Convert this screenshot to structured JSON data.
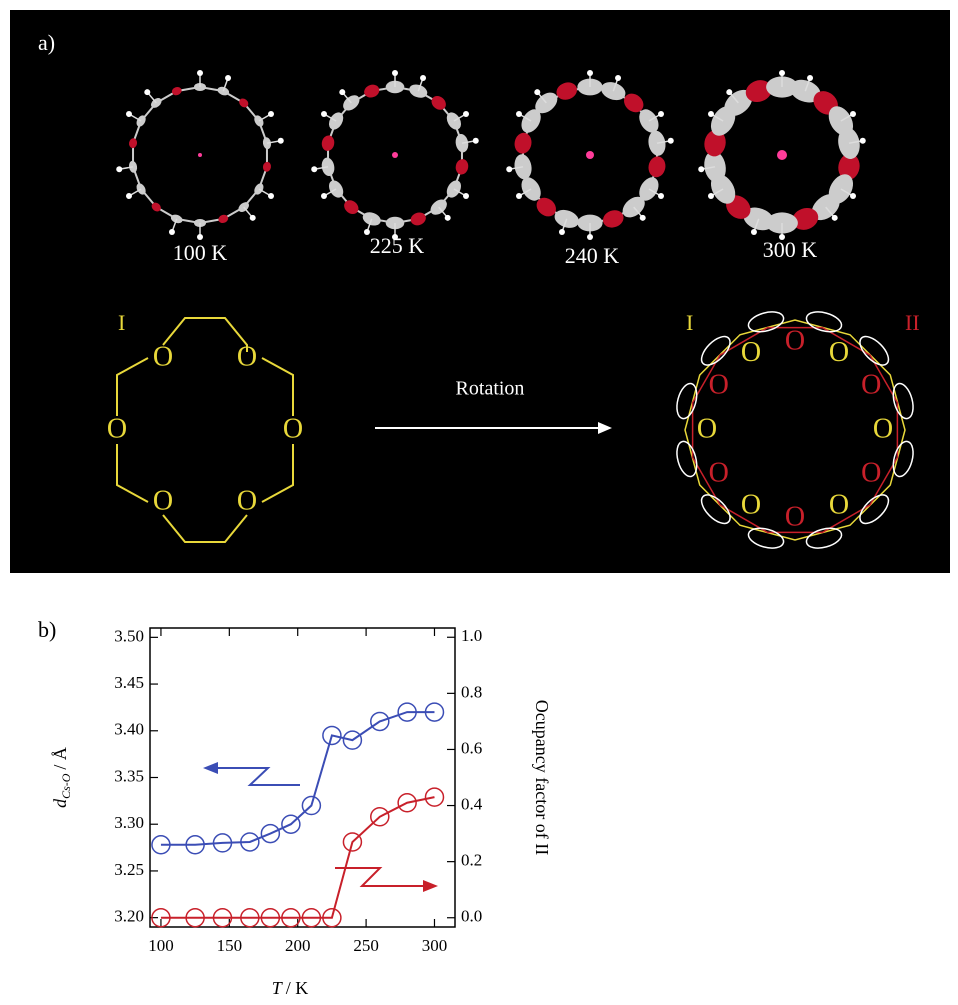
{
  "panel_a": {
    "label": "a)",
    "temperatures": [
      "100 K",
      "225 K",
      "240 K",
      "300 K"
    ],
    "conformer_left": "I",
    "arrow_label": "Rotation",
    "conformer_right_1": "I",
    "conformer_right_2": "II",
    "atom_label": "O"
  },
  "chart_data": {
    "type": "line",
    "panel_label": "b)",
    "xlabel": {
      "symbol": "T",
      "unit": "/ K"
    },
    "ylabel": {
      "symbol": "d",
      "subscript": "Cs-O",
      "unit": "/ Å"
    },
    "y2label": "Ocupancy factor of II",
    "x": [
      100,
      125,
      145,
      165,
      180,
      195,
      210,
      225,
      240,
      260,
      280,
      300
    ],
    "series": [
      {
        "color": "#3b4db5",
        "values": [
          3.278,
          3.278,
          3.28,
          3.281,
          3.29,
          3.3,
          3.32,
          3.395,
          3.39,
          3.41,
          3.42,
          3.42
        ]
      },
      {
        "color": "#c8202a",
        "axis": "y2",
        "values": [
          0,
          0,
          0,
          0,
          0,
          0,
          0,
          0,
          0.27,
          0.36,
          0.41,
          0.43
        ]
      }
    ],
    "xlim": [
      92,
      315
    ],
    "xticks": [
      100,
      150,
      200,
      250,
      300
    ],
    "ylim": [
      3.19,
      3.51
    ],
    "yticks": [
      {
        "value": 3.2,
        "label": "3.20"
      },
      3.25,
      {
        "value": 3.3,
        "label": "3.30"
      },
      3.35,
      {
        "value": 3.4,
        "label": "3.40"
      },
      3.45,
      {
        "value": 3.5,
        "label": "3.50"
      }
    ],
    "y2lim": [
      -0.033,
      1.033
    ],
    "y2ticks": [
      {
        "value": 0,
        "label": "0.0"
      },
      0.2,
      0.4,
      0.6,
      0.8,
      {
        "value": 1,
        "label": "1.0"
      }
    ]
  }
}
